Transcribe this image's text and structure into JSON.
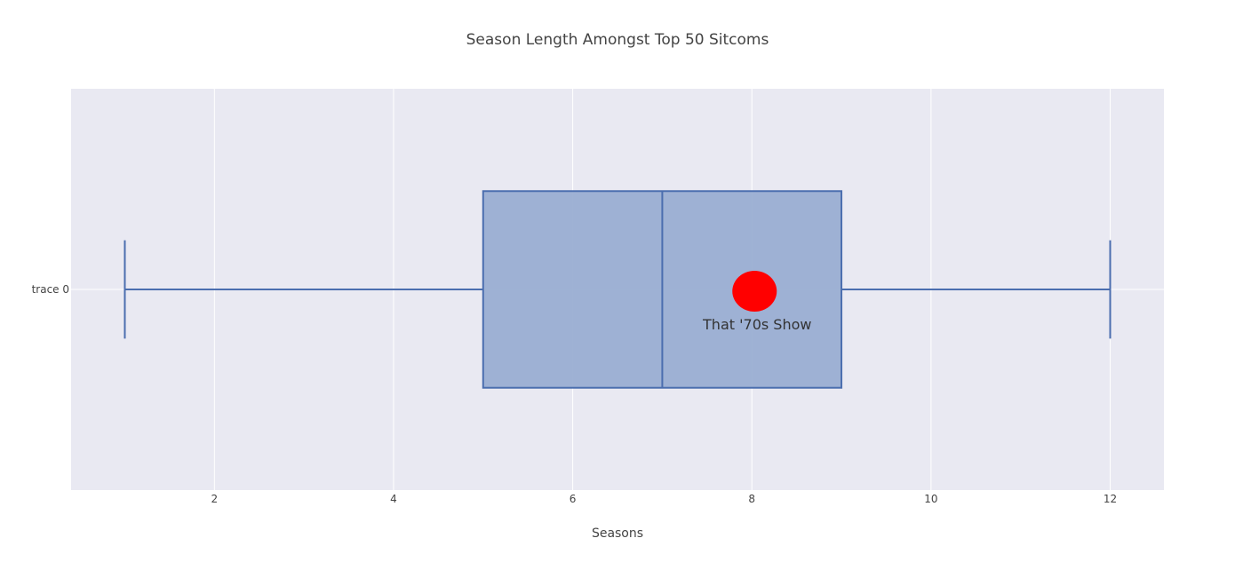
{
  "chart_data": {
    "type": "box",
    "title": "Season Length Amongst Top 50 Sitcoms",
    "xlabel": "Seasons",
    "ylabel": "",
    "xlim": [
      0.4,
      12.6
    ],
    "x_ticks": [
      "2",
      "4",
      "6",
      "8",
      "10",
      "12"
    ],
    "x_tick_values": [
      2,
      4,
      6,
      8,
      10,
      12
    ],
    "grid": true,
    "series": [
      {
        "name": "trace 0",
        "min": 1,
        "q1": 5,
        "median": 7,
        "q3": 9,
        "max": 12
      }
    ],
    "annotations": [
      {
        "label": "That '70s Show",
        "x": 8.03
      }
    ]
  },
  "colors": {
    "plot_background": "#e9e9f2",
    "grid": "#ffffff",
    "box_line": "#4b6eaf",
    "box_fill": "#9aaed2",
    "marker": "#ff0000"
  }
}
